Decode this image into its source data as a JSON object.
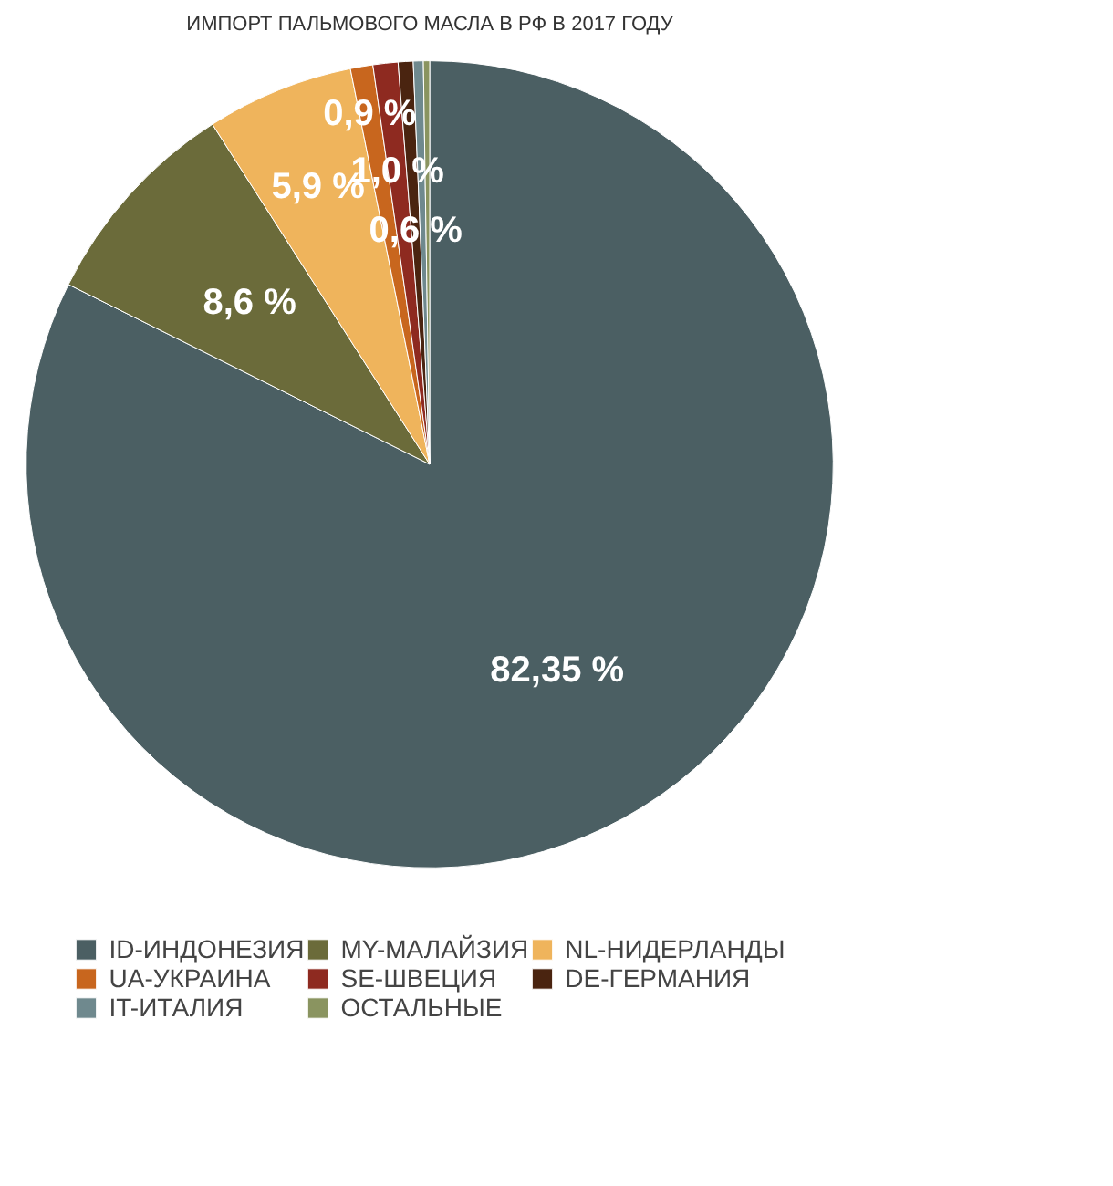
{
  "chart_data": {
    "type": "pie",
    "title": "ИМПОРТ ПАЛЬМОВОГО МАСЛА В РФ В 2017 ГОДУ",
    "categories": [
      "ID-ИНДОНЕЗИЯ",
      "MY-МАЛАЙЗИЯ",
      "NL-НИДЕРЛАНДЫ",
      "UA-УКРАИНА",
      "SE-ШВЕЦИЯ",
      "DE-ГЕРМАНИЯ",
      "IT-ИТАЛИЯ",
      "ОСТАЛЬНЫЕ"
    ],
    "values": [
      82.35,
      8.6,
      5.9,
      0.9,
      1.0,
      0.6,
      0.4,
      0.25
    ],
    "value_labels": [
      "82,35 %",
      "8,6 %",
      "5,9 %",
      "0,9 %",
      "1,0 %",
      "0,6 %",
      null,
      null
    ],
    "colors": [
      "#4b5f63",
      "#6b6b3a",
      "#efb45c",
      "#c8661e",
      "#8e2a20",
      "#4a2410",
      "#6f898e",
      "#8a9460"
    ],
    "legend": "bottom"
  }
}
